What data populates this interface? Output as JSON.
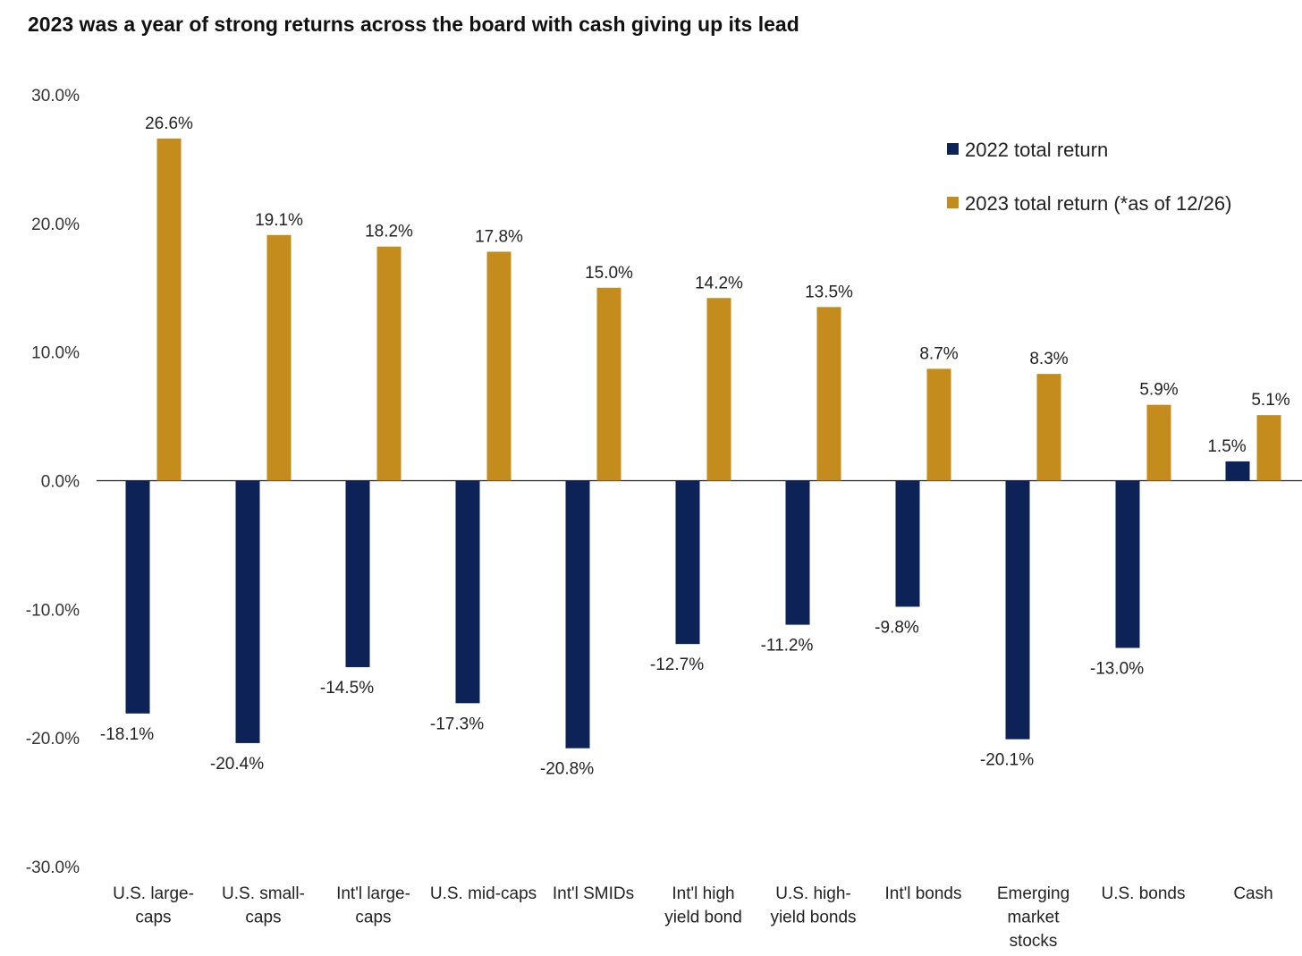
{
  "chart_data": {
    "type": "bar",
    "title": "2023 was a year of strong returns across the board with cash giving up its lead",
    "xlabel": "",
    "ylabel": "",
    "ylim": [
      -30,
      30
    ],
    "y_ticks": [
      30,
      20,
      10,
      0,
      -10,
      -20,
      -30
    ],
    "y_tick_labels": [
      "30.0%",
      "20.0%",
      "10.0%",
      "0.0%",
      "-10.0%",
      "-20.0%",
      "-30.0%"
    ],
    "grid": false,
    "legend_position": "top-right",
    "categories": [
      [
        "U.S. large-",
        "caps"
      ],
      [
        "U.S. small-",
        "caps"
      ],
      [
        "Int'l large-",
        "caps"
      ],
      [
        "U.S. mid-caps"
      ],
      [
        "Int'l SMIDs"
      ],
      [
        "Int'l high",
        "yield bond"
      ],
      [
        "U.S. high-",
        "yield bonds"
      ],
      [
        "Int'l bonds"
      ],
      [
        "Emerging",
        "market",
        "stocks"
      ],
      [
        "U.S. bonds"
      ],
      [
        "Cash"
      ]
    ],
    "series": [
      {
        "name": "2022 total return",
        "color": "#0d2358",
        "values": [
          -18.1,
          -20.4,
          -14.5,
          -17.3,
          -20.8,
          -12.7,
          -11.2,
          -9.8,
          -20.1,
          -13.0,
          1.5
        ],
        "labels": [
          "-18.1%",
          "-20.4%",
          "-14.5%",
          "-17.3%",
          "-20.8%",
          "-12.7%",
          "-11.2%",
          "-9.8%",
          "-20.1%",
          "-13.0%",
          "1.5%"
        ]
      },
      {
        "name": "2023 total return (*as of 12/26)",
        "color": "#c48c1d",
        "values": [
          26.6,
          19.1,
          18.2,
          17.8,
          15.0,
          14.2,
          13.5,
          8.7,
          8.3,
          5.9,
          5.1
        ],
        "labels": [
          "26.6%",
          "19.1%",
          "18.2%",
          "17.8%",
          "15.0%",
          "14.2%",
          "13.5%",
          "8.7%",
          "8.3%",
          "5.9%",
          "5.1%"
        ]
      }
    ]
  }
}
